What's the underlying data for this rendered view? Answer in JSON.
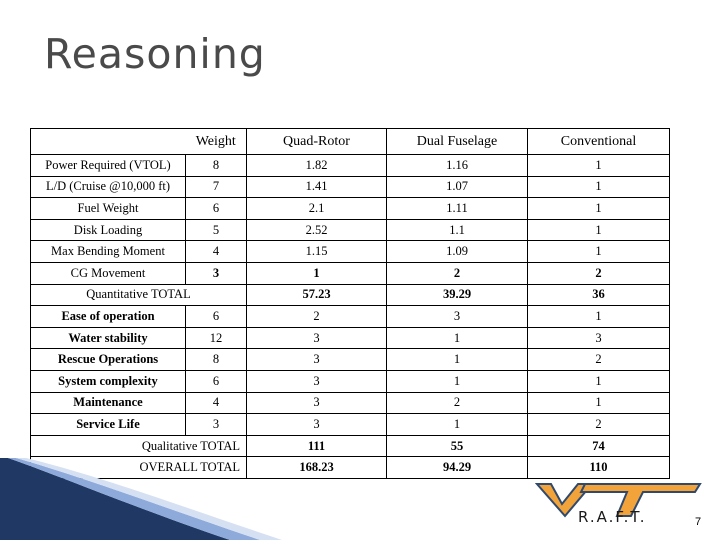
{
  "slide": {
    "title": "Reasoning",
    "page_number": "7",
    "logo_text": "R.A.F.T."
  },
  "table": {
    "headers": [
      "",
      "Weight",
      "Quad-Rotor",
      "Dual Fuselage",
      "Conventional"
    ],
    "quantitative_rows": [
      [
        "Power Required (VTOL)",
        "8",
        "1.82",
        "1.16",
        "1"
      ],
      [
        "L/D (Cruise @10,000 ft)",
        "7",
        "1.41",
        "1.07",
        "1"
      ],
      [
        "Fuel Weight",
        "6",
        "2.1",
        "1.11",
        "1"
      ],
      [
        "Disk Loading",
        "5",
        "2.52",
        "1.1",
        "1"
      ],
      [
        "Max Bending Moment",
        "4",
        "1.15",
        "1.09",
        "1"
      ],
      [
        "CG Movement",
        "3",
        "1",
        "2",
        "2"
      ]
    ],
    "quantitative_total": [
      "Quantitative TOTAL",
      "57.23",
      "39.29",
      "36"
    ],
    "qualitative_rows": [
      [
        "Ease of operation",
        "6",
        "2",
        "3",
        "1"
      ],
      [
        "Water stability",
        "12",
        "3",
        "1",
        "3"
      ],
      [
        "Rescue Operations",
        "8",
        "3",
        "1",
        "2"
      ],
      [
        "System complexity",
        "6",
        "3",
        "1",
        "1"
      ],
      [
        "Maintenance",
        "4",
        "3",
        "2",
        "1"
      ],
      [
        "Service Life",
        "3",
        "3",
        "1",
        "2"
      ]
    ],
    "qualitative_total": [
      "Qualitative TOTAL",
      "111",
      "55",
      "74"
    ],
    "overall_total": [
      "OVERALL TOTAL",
      "168.23",
      "94.29",
      "110"
    ]
  },
  "colors": {
    "title": "#4a4a4a",
    "band_dark": "#1f3864",
    "band_light": "#8eaadb",
    "logo_orange": "#f2a33a",
    "logo_blue": "#2f4a6e"
  }
}
